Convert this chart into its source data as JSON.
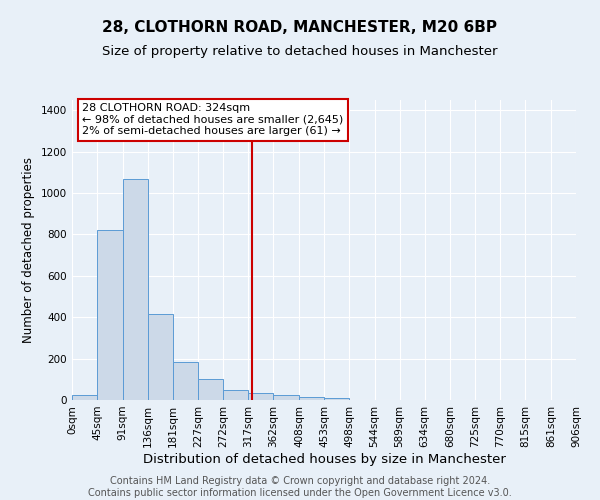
{
  "title": "28, CLOTHORN ROAD, MANCHESTER, M20 6BP",
  "subtitle": "Size of property relative to detached houses in Manchester",
  "xlabel": "Distribution of detached houses by size in Manchester",
  "ylabel": "Number of detached properties",
  "bar_edges": [
    0,
    45,
    91,
    136,
    181,
    227,
    272,
    317,
    362,
    408,
    453,
    498,
    544,
    589,
    634,
    680,
    725,
    770,
    815,
    861,
    906
  ],
  "bar_heights": [
    25,
    820,
    1070,
    415,
    185,
    100,
    50,
    35,
    25,
    15,
    10,
    0,
    0,
    0,
    0,
    0,
    0,
    0,
    0,
    0
  ],
  "bar_color": "#ccd9e8",
  "bar_edge_color": "#5b9bd5",
  "vline_x": 324,
  "vline_color": "#cc0000",
  "annotation_text": "28 CLOTHORN ROAD: 324sqm\n← 98% of detached houses are smaller (2,645)\n2% of semi-detached houses are larger (61) →",
  "annotation_box_color": "white",
  "annotation_box_edge_color": "#cc0000",
  "ylim": [
    0,
    1450
  ],
  "yticks": [
    0,
    200,
    400,
    600,
    800,
    1000,
    1200,
    1400
  ],
  "tick_labels": [
    "0sqm",
    "45sqm",
    "91sqm",
    "136sqm",
    "181sqm",
    "227sqm",
    "272sqm",
    "317sqm",
    "362sqm",
    "408sqm",
    "453sqm",
    "498sqm",
    "544sqm",
    "589sqm",
    "634sqm",
    "680sqm",
    "725sqm",
    "770sqm",
    "815sqm",
    "861sqm",
    "906sqm"
  ],
  "background_color": "#e8f0f8",
  "grid_color": "white",
  "footer_text": "Contains HM Land Registry data © Crown copyright and database right 2024.\nContains public sector information licensed under the Open Government Licence v3.0.",
  "title_fontsize": 11,
  "subtitle_fontsize": 9.5,
  "xlabel_fontsize": 9.5,
  "ylabel_fontsize": 8.5,
  "tick_fontsize": 7.5,
  "footer_fontsize": 7,
  "annot_fontsize": 8
}
